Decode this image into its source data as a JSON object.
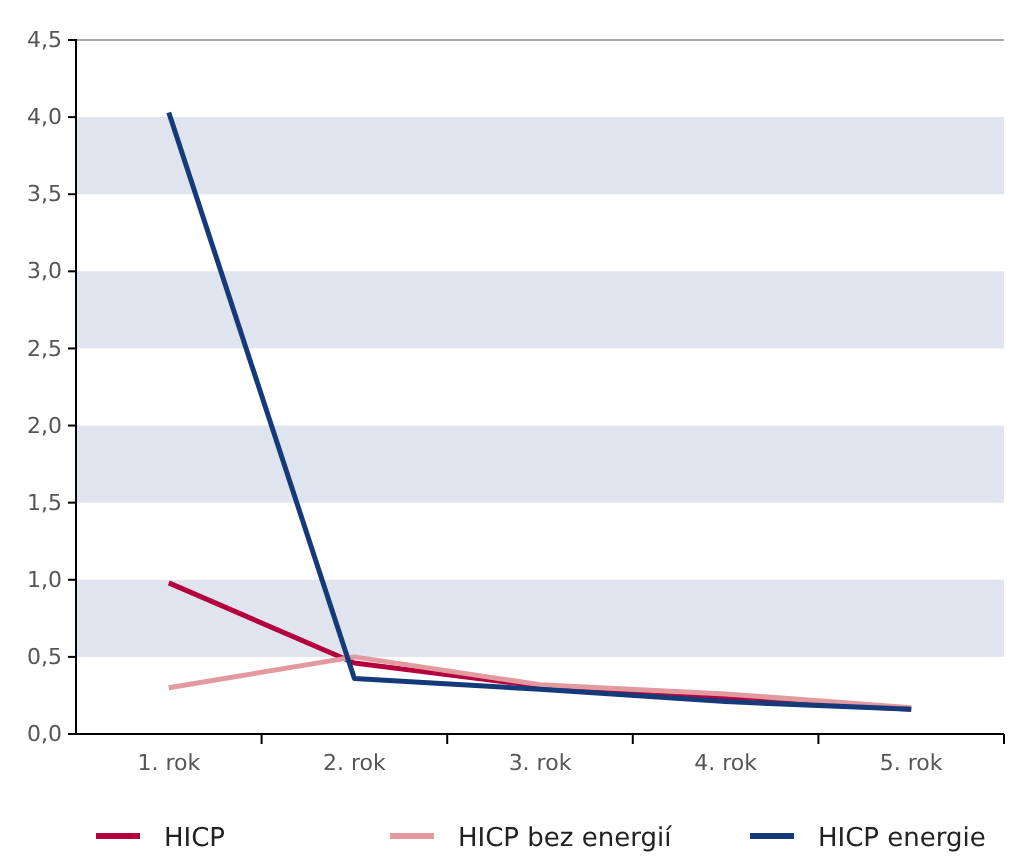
{
  "chart_data": {
    "type": "line",
    "categories": [
      "1. rok",
      "2. rok",
      "3. rok",
      "4. rok",
      "5. rok"
    ],
    "series": [
      {
        "name": "HICP",
        "color": "#b5003f",
        "values": [
          0.98,
          0.46,
          0.31,
          0.23,
          0.16
        ]
      },
      {
        "name": "HICP bez energií",
        "color": "#e39a9f",
        "values": [
          0.3,
          0.5,
          0.32,
          0.26,
          0.17
        ]
      },
      {
        "name": "HICP energie",
        "color": "#143a7a",
        "values": [
          4.03,
          0.36,
          0.29,
          0.21,
          0.16
        ]
      }
    ],
    "ylim": [
      0,
      4.5
    ],
    "yticks": [
      {
        "value": 0,
        "label": "0,0"
      },
      {
        "value": 0.5,
        "label": "0,5"
      },
      {
        "value": 1,
        "label": "1,0"
      },
      {
        "value": 1.5,
        "label": "1,5"
      },
      {
        "value": 2,
        "label": "2,0"
      },
      {
        "value": 2.5,
        "label": "2,5"
      },
      {
        "value": 3,
        "label": "3,0"
      },
      {
        "value": 3.5,
        "label": "3,5"
      },
      {
        "value": 4,
        "label": "4,0"
      },
      {
        "value": 4.5,
        "label": "4,5"
      }
    ],
    "bands": [
      {
        "axis": "y",
        "from": 0.5,
        "to": 1,
        "color": "#dfe4ee"
      },
      {
        "axis": "y",
        "from": 1.5,
        "to": 2,
        "color": "#dfe4ee"
      },
      {
        "axis": "y",
        "from": 2.5,
        "to": 3,
        "color": "#dfe4ee"
      },
      {
        "axis": "y",
        "from": 3.5,
        "to": 4,
        "color": "#dfe4ee"
      }
    ],
    "legend": "bottom",
    "marker": "none",
    "line_style": "solid"
  }
}
